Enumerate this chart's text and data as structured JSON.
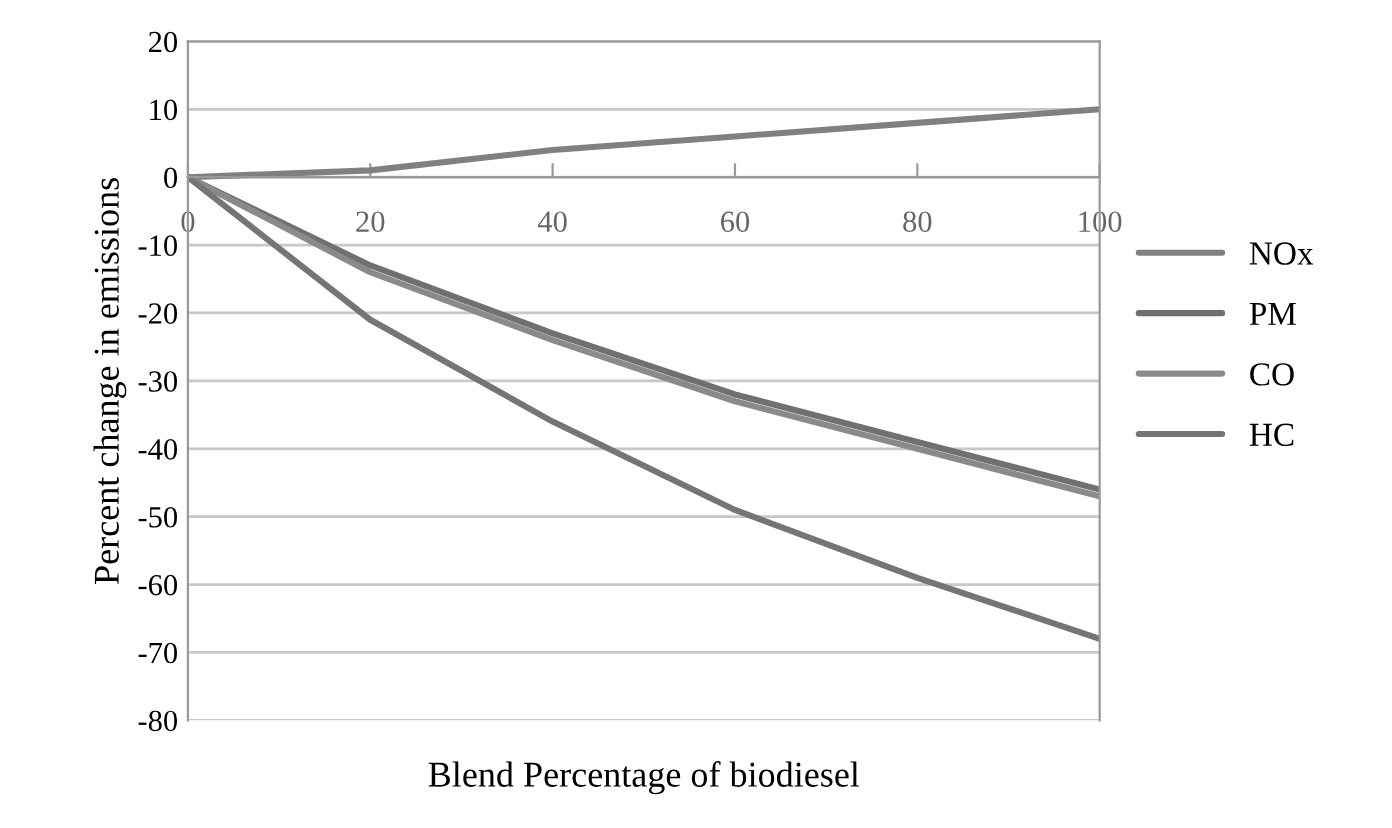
{
  "chart_data": {
    "type": "line",
    "xlabel": "Blend Percentage of biodiesel",
    "ylabel": "Percent change in emissions",
    "x": [
      0,
      20,
      40,
      60,
      80,
      100
    ],
    "series": [
      {
        "name": "NOx",
        "color": "#808080",
        "values": [
          0,
          1,
          4,
          6,
          8,
          10
        ]
      },
      {
        "name": "PM",
        "color": "#707070",
        "values": [
          0,
          -13,
          -23,
          -32,
          -39,
          -46
        ]
      },
      {
        "name": "CO",
        "color": "#8a8a8a",
        "values": [
          0,
          -14,
          -24,
          -33,
          -40,
          -47
        ]
      },
      {
        "name": "HC",
        "color": "#757575",
        "values": [
          0,
          -21,
          -36,
          -49,
          -59,
          -68
        ]
      }
    ],
    "xlim": [
      0,
      100
    ],
    "xticks": [
      0,
      20,
      40,
      60,
      80,
      100
    ],
    "ylim": [
      -80,
      20
    ],
    "yticks": [
      20,
      10,
      0,
      -10,
      -20,
      -30,
      -40,
      -50,
      -60,
      -70,
      -80
    ],
    "grid": "y",
    "legend": "right",
    "marker": "none",
    "line_style": "solid"
  }
}
